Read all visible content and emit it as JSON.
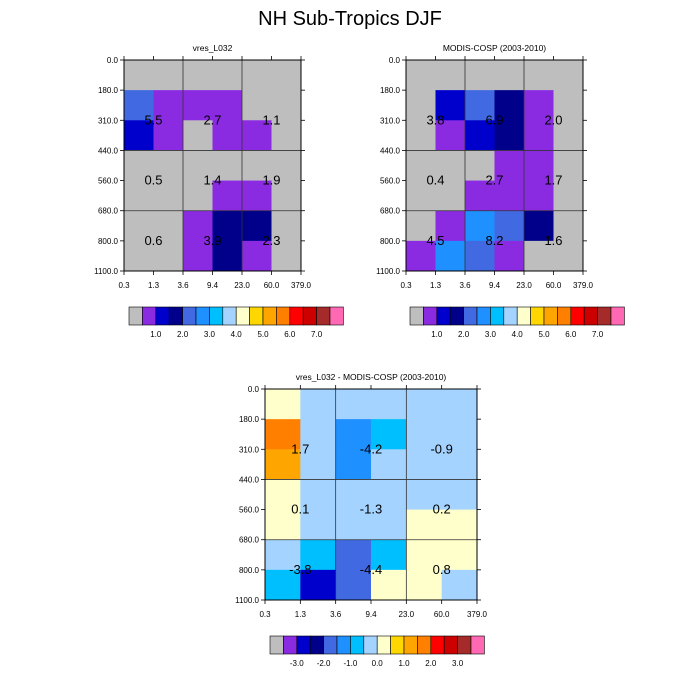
{
  "title": "NH Sub-Tropics DJF",
  "chart_data": [
    {
      "type": "heatmap",
      "title": "vres_L032",
      "x_tick_labels": [
        "0.3",
        "1.3",
        "3.6",
        "9.4",
        "23.0",
        "60.0",
        "379.0"
      ],
      "y_tick_labels": [
        "0.0",
        "180.0",
        "310.0",
        "440.0",
        "560.0",
        "680.0",
        "800.0",
        "1100.0"
      ],
      "cell_colors": [
        [
          "#BEBEBE",
          "#BEBEBE",
          "#BEBEBE",
          "#BEBEBE",
          "#BEBEBE",
          "#BEBEBE"
        ],
        [
          "#4169E1",
          "#8A2BE2",
          "#8A2BE2",
          "#8A2BE2",
          "#BEBEBE",
          "#BEBEBE"
        ],
        [
          "#0000CD",
          "#8A2BE2",
          "#BEBEBE",
          "#8A2BE2",
          "#8A2BE2",
          "#BEBEBE"
        ],
        [
          "#BEBEBE",
          "#BEBEBE",
          "#BEBEBE",
          "#BEBEBE",
          "#BEBEBE",
          "#BEBEBE"
        ],
        [
          "#BEBEBE",
          "#BEBEBE",
          "#BEBEBE",
          "#8A2BE2",
          "#8A2BE2",
          "#BEBEBE"
        ],
        [
          "#BEBEBE",
          "#BEBEBE",
          "#8A2BE2",
          "#00008B",
          "#00008B",
          "#BEBEBE"
        ],
        [
          "#BEBEBE",
          "#BEBEBE",
          "#8A2BE2",
          "#00008B",
          "#8A2BE2",
          "#BEBEBE"
        ]
      ],
      "block_values": [
        [
          "5.5",
          "2.7",
          "1.1"
        ],
        [
          "0.5",
          "1.4",
          "1.9"
        ],
        [
          "0.6",
          "3.9",
          "2.3"
        ]
      ]
    },
    {
      "type": "heatmap",
      "title": "MODIS-COSP (2003-2010)",
      "x_tick_labels": [
        "0.3",
        "1.3",
        "3.6",
        "9.4",
        "23.0",
        "60.0",
        "379.0"
      ],
      "y_tick_labels": [
        "0.0",
        "180.0",
        "310.0",
        "440.0",
        "560.0",
        "680.0",
        "800.0",
        "1100.0"
      ],
      "cell_colors": [
        [
          "#BEBEBE",
          "#BEBEBE",
          "#BEBEBE",
          "#BEBEBE",
          "#BEBEBE",
          "#BEBEBE"
        ],
        [
          "#BEBEBE",
          "#0000CD",
          "#4169E1",
          "#00008B",
          "#8A2BE2",
          "#BEBEBE"
        ],
        [
          "#BEBEBE",
          "#8A2BE2",
          "#0000CD",
          "#00008B",
          "#8A2BE2",
          "#BEBEBE"
        ],
        [
          "#BEBEBE",
          "#BEBEBE",
          "#BEBEBE",
          "#8A2BE2",
          "#8A2BE2",
          "#BEBEBE"
        ],
        [
          "#BEBEBE",
          "#BEBEBE",
          "#8A2BE2",
          "#8A2BE2",
          "#8A2BE2",
          "#BEBEBE"
        ],
        [
          "#BEBEBE",
          "#8A2BE2",
          "#1E90FF",
          "#4169E1",
          "#00008B",
          "#BEBEBE"
        ],
        [
          "#8A2BE2",
          "#1E90FF",
          "#4169E1",
          "#8A2BE2",
          "#BEBEBE",
          "#BEBEBE"
        ]
      ],
      "block_values": [
        [
          "3.8",
          "6.9",
          "2.0"
        ],
        [
          "0.4",
          "2.7",
          "1.7"
        ],
        [
          "4.5",
          "8.2",
          "1.6"
        ]
      ]
    },
    {
      "type": "heatmap",
      "title": "vres_L032 - MODIS-COSP (2003-2010)",
      "x_tick_labels": [
        "0.3",
        "1.3",
        "3.6",
        "9.4",
        "23.0",
        "60.0",
        "379.0"
      ],
      "y_tick_labels": [
        "0.0",
        "180.0",
        "310.0",
        "440.0",
        "560.0",
        "680.0",
        "800.0",
        "1100.0"
      ],
      "cell_colors": [
        [
          "#FFFFCC",
          "#A4D3FF",
          "#A4D3FF",
          "#A4D3FF",
          "#A4D3FF",
          "#A4D3FF"
        ],
        [
          "#FF7F00",
          "#A4D3FF",
          "#1E90FF",
          "#00BFFF",
          "#A4D3FF",
          "#A4D3FF"
        ],
        [
          "#FFA500",
          "#A4D3FF",
          "#1E90FF",
          "#A4D3FF",
          "#A4D3FF",
          "#A4D3FF"
        ],
        [
          "#FFFFCC",
          "#A4D3FF",
          "#A4D3FF",
          "#A4D3FF",
          "#A4D3FF",
          "#A4D3FF"
        ],
        [
          "#FFFFCC",
          "#A4D3FF",
          "#A4D3FF",
          "#A4D3FF",
          "#FFFFCC",
          "#FFFFCC"
        ],
        [
          "#A4D3FF",
          "#00BFFF",
          "#4169E1",
          "#00BFFF",
          "#FFFFCC",
          "#FFFFCC"
        ],
        [
          "#00BFFF",
          "#0000CD",
          "#4169E1",
          "#FFFFCC",
          "#FFFFCC",
          "#A4D3FF"
        ]
      ],
      "block_values": [
        [
          "1.7",
          "-4.2",
          "-0.9"
        ],
        [
          "0.1",
          "-1.3",
          "0.2"
        ],
        [
          "-3.8",
          "-4.4",
          "0.8"
        ]
      ]
    }
  ],
  "colorbars": [
    {
      "colors": [
        "#BEBEBE",
        "#8A2BE2",
        "#0000CD",
        "#00008B",
        "#4169E1",
        "#1E90FF",
        "#00BFFF",
        "#A4D3FF",
        "#FFFFCC",
        "#FFD700",
        "#FFA500",
        "#FF7F00",
        "#FF0000",
        "#CD0000",
        "#A52A2A",
        "#FF69B4"
      ],
      "labels": [
        "1.0",
        "2.0",
        "3.0",
        "4.0",
        "5.0",
        "6.0",
        "7.0"
      ],
      "label_boundaries": [
        2,
        4,
        6,
        8,
        10,
        12,
        14
      ]
    },
    {
      "colors": [
        "#BEBEBE",
        "#8A2BE2",
        "#0000CD",
        "#00008B",
        "#4169E1",
        "#1E90FF",
        "#00BFFF",
        "#A4D3FF",
        "#FFFFCC",
        "#FFD700",
        "#FFA500",
        "#FF7F00",
        "#FF0000",
        "#CD0000",
        "#A52A2A",
        "#FF69B4"
      ],
      "labels": [
        "1.0",
        "2.0",
        "3.0",
        "4.0",
        "5.0",
        "6.0",
        "7.0"
      ],
      "label_boundaries": [
        2,
        4,
        6,
        8,
        10,
        12,
        14
      ]
    },
    {
      "colors": [
        "#BEBEBE",
        "#8A2BE2",
        "#0000CD",
        "#00008B",
        "#4169E1",
        "#1E90FF",
        "#00BFFF",
        "#A4D3FF",
        "#FFFFCC",
        "#FFD700",
        "#FFA500",
        "#FF7F00",
        "#FF0000",
        "#CD0000",
        "#A52A2A",
        "#FF69B4"
      ],
      "labels": [
        "-3.0",
        "-2.0",
        "-1.0",
        "0.0",
        "1.0",
        "2.0",
        "3.0"
      ],
      "label_boundaries": [
        2,
        4,
        6,
        8,
        10,
        12,
        14
      ]
    }
  ]
}
